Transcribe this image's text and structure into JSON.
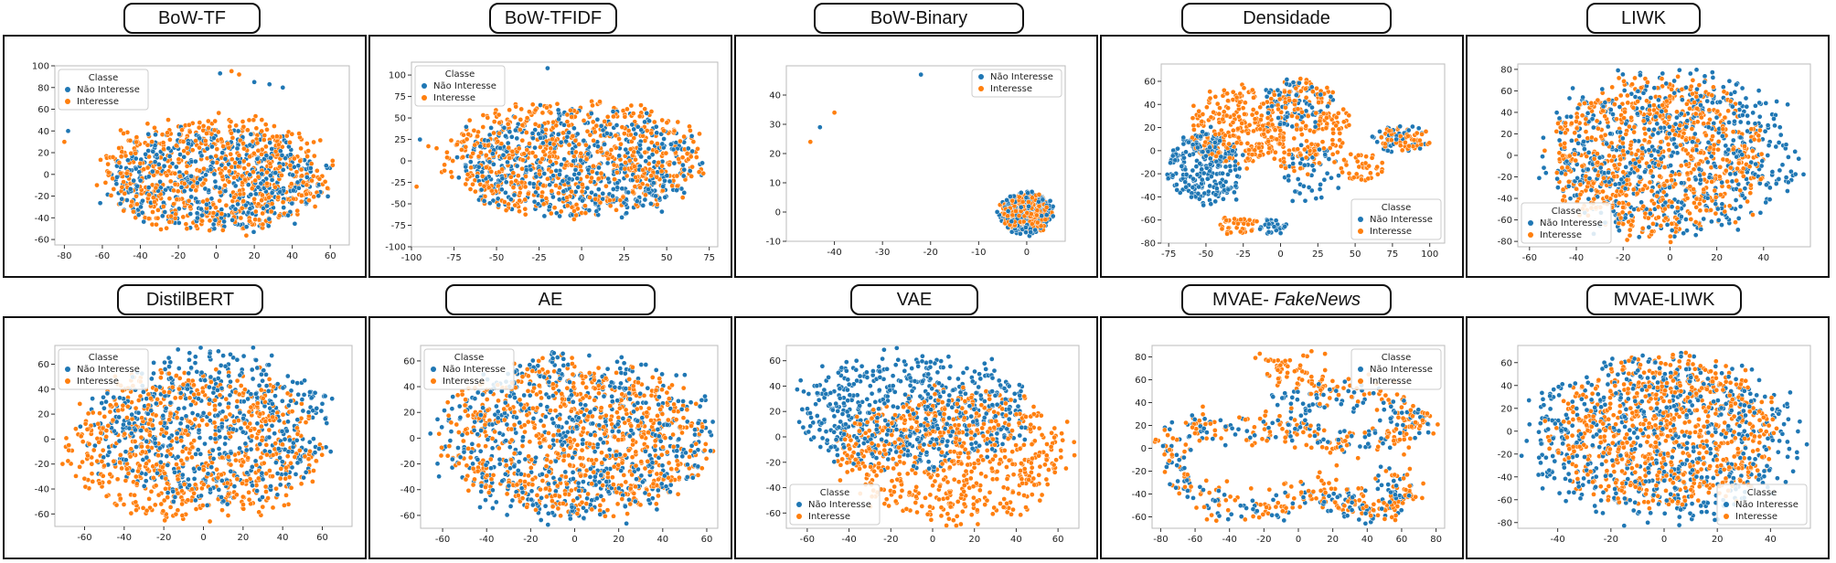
{
  "colors": {
    "nao_interesse": "#1f77b4",
    "interesse": "#ff7f0e",
    "point_edge": "#ffffff",
    "axes_frame": "#bbbbbb"
  },
  "panels": [
    {
      "title": "BoW-TF",
      "title_parts": [
        {
          "text": "BoW-TF",
          "italic": false
        }
      ]
    },
    {
      "title": "BoW-TFIDF",
      "title_parts": [
        {
          "text": "BoW-TFIDF",
          "italic": false
        }
      ]
    },
    {
      "title": "BoW-Binary",
      "title_parts": [
        {
          "text": "BoW-Binary",
          "italic": false
        }
      ]
    },
    {
      "title": "Densidade",
      "title_parts": [
        {
          "text": "Densidade",
          "italic": false
        }
      ]
    },
    {
      "title": "LIWK",
      "title_parts": [
        {
          "text": "LIWK",
          "italic": false
        }
      ]
    },
    {
      "title": "DistilBERT",
      "title_parts": [
        {
          "text": "DistilBERT",
          "italic": false
        }
      ]
    },
    {
      "title": "AE",
      "title_parts": [
        {
          "text": "AE",
          "italic": false
        }
      ]
    },
    {
      "title": "VAE",
      "title_parts": [
        {
          "text": "VAE",
          "italic": false
        }
      ]
    },
    {
      "title": "MVAE- FakeNews",
      "title_parts": [
        {
          "text": "MVAE- ",
          "italic": false
        },
        {
          "text": "FakeNews",
          "italic": true
        }
      ]
    },
    {
      "title": "MVAE-LIWK",
      "title_parts": [
        {
          "text": "MVAE-LIWK",
          "italic": false
        }
      ]
    }
  ],
  "chart_data": [
    {
      "type": "scatter",
      "title": "BoW-TF",
      "xlim": [
        -85,
        70
      ],
      "ylim": [
        -65,
        100
      ],
      "xticks": [
        -80,
        -60,
        -40,
        -20,
        0,
        20,
        40,
        60
      ],
      "yticks": [
        -60,
        -40,
        -20,
        0,
        20,
        40,
        60,
        80,
        100
      ],
      "legend": {
        "title": "Classe",
        "labels": [
          "Não Interesse",
          "Interesse"
        ],
        "position": "upper-left"
      },
      "series": [
        {
          "name": "Não Interesse",
          "clusters": [
            {
              "cx": 0,
              "cy": -5,
              "rx": 55,
              "ry": 45,
              "n": 500
            }
          ],
          "points": [
            [
              -78,
              40
            ],
            [
              2,
              93
            ],
            [
              20,
              85
            ],
            [
              28,
              83
            ],
            [
              35,
              80
            ]
          ]
        },
        {
          "name": "Interesse",
          "clusters": [
            {
              "cx": -2,
              "cy": 0,
              "rx": 58,
              "ry": 52,
              "n": 650
            }
          ],
          "points": [
            [
              -80,
              30
            ],
            [
              8,
              95
            ],
            [
              12,
              92
            ]
          ]
        }
      ]
    },
    {
      "type": "scatter",
      "title": "BoW-TFIDF",
      "xlim": [
        -100,
        80
      ],
      "ylim": [
        -100,
        115
      ],
      "xticks": [
        -100,
        -75,
        -50,
        -25,
        0,
        25,
        50,
        75
      ],
      "yticks": [
        -100,
        -75,
        -50,
        -25,
        0,
        25,
        50,
        75,
        100
      ],
      "legend": {
        "title": "Classe",
        "labels": [
          "Não Interesse",
          "Interesse"
        ],
        "position": "upper-left"
      },
      "series": [
        {
          "name": "Não Interesse",
          "clusters": [
            {
              "cx": 0,
              "cy": -5,
              "rx": 70,
              "ry": 60,
              "n": 550
            }
          ],
          "points": [
            [
              -20,
              108
            ],
            [
              -95,
              25
            ]
          ]
        },
        {
          "name": "Interesse",
          "clusters": [
            {
              "cx": -5,
              "cy": 5,
              "rx": 75,
              "ry": 65,
              "n": 650
            }
          ],
          "points": [
            [
              -97,
              -30
            ]
          ]
        }
      ]
    },
    {
      "type": "scatter",
      "title": "BoW-Binary",
      "xlim": [
        -50,
        8
      ],
      "ylim": [
        -10,
        50
      ],
      "xticks": [
        -40,
        -30,
        -20,
        -10,
        0
      ],
      "yticks": [
        -10,
        0,
        10,
        20,
        30,
        40
      ],
      "legend": {
        "title": "",
        "labels": [
          "Não Interesse",
          "Interesse"
        ],
        "position": "upper-right"
      },
      "series": [
        {
          "name": "Não Interesse",
          "clusters": [
            {
              "cx": 0,
              "cy": 0,
              "rx": 5.5,
              "ry": 7,
              "n": 260
            }
          ],
          "points": [
            [
              -22,
              47
            ],
            [
              -43,
              29
            ]
          ]
        },
        {
          "name": "Interesse",
          "clusters": [
            {
              "cx": 0,
              "cy": 0,
              "rx": 5,
              "ry": 6.5,
              "n": 320
            }
          ],
          "points": [
            [
              -45,
              24
            ],
            [
              -40,
              34
            ]
          ]
        }
      ]
    },
    {
      "type": "scatter",
      "title": "Densidade",
      "xlim": [
        -80,
        110
      ],
      "ylim": [
        -80,
        75
      ],
      "xticks": [
        -75,
        -50,
        -25,
        0,
        25,
        50,
        75,
        100
      ],
      "yticks": [
        -80,
        -60,
        -40,
        -20,
        0,
        20,
        40,
        60
      ],
      "legend": {
        "title": "Classe",
        "labels": [
          "Não Interesse",
          "Interesse"
        ],
        "position": "lower-right"
      },
      "series": [
        {
          "name": "Não Interesse",
          "clusters": [
            {
              "cx": -50,
              "cy": -15,
              "rx": 25,
              "ry": 30,
              "n": 260
            },
            {
              "cx": 10,
              "cy": 40,
              "rx": 25,
              "ry": 20,
              "n": 80
            },
            {
              "cx": -5,
              "cy": -65,
              "rx": 10,
              "ry": 8,
              "n": 30
            },
            {
              "cx": 80,
              "cy": 10,
              "rx": 20,
              "ry": 12,
              "n": 40
            },
            {
              "cx": 20,
              "cy": -20,
              "rx": 20,
              "ry": 25,
              "n": 50
            }
          ]
        },
        {
          "name": "Interesse",
          "clusters": [
            {
              "cx": -30,
              "cy": 20,
              "rx": 30,
              "ry": 35,
              "n": 220
            },
            {
              "cx": 15,
              "cy": 20,
              "rx": 30,
              "ry": 40,
              "n": 220
            },
            {
              "cx": 85,
              "cy": 10,
              "rx": 18,
              "ry": 10,
              "n": 50
            },
            {
              "cx": 55,
              "cy": -15,
              "rx": 15,
              "ry": 12,
              "n": 40
            },
            {
              "cx": -30,
              "cy": -65,
              "rx": 15,
              "ry": 8,
              "n": 40
            }
          ]
        }
      ]
    },
    {
      "type": "scatter",
      "title": "LIWK",
      "xlim": [
        -65,
        60
      ],
      "ylim": [
        -85,
        85
      ],
      "xticks": [
        -60,
        -40,
        -20,
        0,
        20,
        40
      ],
      "yticks": [
        -80,
        -60,
        -40,
        -20,
        0,
        20,
        40,
        60,
        80
      ],
      "legend": {
        "title": "Classe",
        "labels": [
          "Não Interesse",
          "Interesse"
        ],
        "position": "lower-left"
      },
      "series": [
        {
          "name": "Não Interesse",
          "clusters": [
            {
              "cx": 0,
              "cy": 0,
              "rx": 52,
              "ry": 75,
              "n": 650
            }
          ]
        },
        {
          "name": "Interesse",
          "clusters": [
            {
              "cx": -5,
              "cy": 0,
              "rx": 45,
              "ry": 72,
              "n": 750
            }
          ]
        }
      ]
    },
    {
      "type": "scatter",
      "title": "DistilBERT",
      "xlim": [
        -75,
        75
      ],
      "ylim": [
        -70,
        75
      ],
      "xticks": [
        -60,
        -40,
        -20,
        0,
        20,
        40,
        60
      ],
      "yticks": [
        -60,
        -40,
        -20,
        0,
        20,
        40,
        60
      ],
      "legend": {
        "title": "Classe",
        "labels": [
          "Não Interesse",
          "Interesse"
        ],
        "position": "upper-left"
      },
      "series": [
        {
          "name": "Não Interesse",
          "clusters": [
            {
              "cx": 5,
              "cy": 10,
              "rx": 60,
              "ry": 60,
              "n": 600
            }
          ]
        },
        {
          "name": "Interesse",
          "clusters": [
            {
              "cx": -5,
              "cy": -5,
              "rx": 62,
              "ry": 60,
              "n": 700
            }
          ]
        }
      ]
    },
    {
      "type": "scatter",
      "title": "AE",
      "xlim": [
        -70,
        65
      ],
      "ylim": [
        -70,
        72
      ],
      "xticks": [
        -60,
        -40,
        -20,
        0,
        20,
        40,
        60
      ],
      "yticks": [
        -60,
        -40,
        -20,
        0,
        20,
        40,
        60
      ],
      "legend": {
        "title": "Classe",
        "labels": [
          "Não Interesse",
          "Interesse"
        ],
        "position": "upper-left"
      },
      "series": [
        {
          "name": "Não Interesse",
          "clusters": [
            {
              "cx": 0,
              "cy": 0,
              "rx": 62,
              "ry": 62,
              "n": 650
            }
          ]
        },
        {
          "name": "Interesse",
          "clusters": [
            {
              "cx": 0,
              "cy": 0,
              "rx": 58,
              "ry": 60,
              "n": 750
            }
          ]
        }
      ]
    },
    {
      "type": "scatter",
      "title": "VAE",
      "xlim": [
        -70,
        70
      ],
      "ylim": [
        -72,
        72
      ],
      "xticks": [
        -60,
        -40,
        -20,
        0,
        20,
        40,
        60
      ],
      "yticks": [
        -60,
        -40,
        -20,
        0,
        20,
        40,
        60
      ],
      "legend": {
        "title": "Classe",
        "labels": [
          "Não Interesse",
          "Interesse"
        ],
        "position": "lower-left"
      },
      "series": [
        {
          "name": "Não Interesse",
          "clusters": [
            {
              "cx": -10,
              "cy": 20,
              "rx": 55,
              "ry": 45,
              "n": 600
            }
          ]
        },
        {
          "name": "Interesse",
          "clusters": [
            {
              "cx": 10,
              "cy": -15,
              "rx": 55,
              "ry": 50,
              "n": 650
            }
          ]
        }
      ]
    },
    {
      "type": "scatter",
      "title": "MVAE- FakeNews",
      "xlim": [
        -85,
        85
      ],
      "ylim": [
        -70,
        90
      ],
      "xticks": [
        -80,
        -60,
        -40,
        -20,
        0,
        20,
        40,
        60,
        80
      ],
      "yticks": [
        -60,
        -40,
        -20,
        0,
        20,
        40,
        60,
        80
      ],
      "legend": {
        "title": "Classe",
        "labels": [
          "Não Interesse",
          "Interesse"
        ],
        "position": "upper-right"
      },
      "series": [
        {
          "name": "Não Interesse",
          "path": [
            [
              -10,
              55
            ],
            [
              0,
              35
            ],
            [
              20,
              45
            ],
            [
              50,
              35
            ],
            [
              70,
              25
            ],
            [
              55,
              10
            ],
            [
              30,
              5
            ],
            [
              10,
              10
            ],
            [
              -5,
              20
            ],
            [
              -30,
              15
            ],
            [
              -60,
              20
            ],
            [
              -75,
              0
            ],
            [
              -65,
              -30
            ],
            [
              -45,
              -50
            ],
            [
              -20,
              -55
            ],
            [
              10,
              -40
            ],
            [
              30,
              -45
            ],
            [
              40,
              -60
            ],
            [
              60,
              -45
            ],
            [
              50,
              -25
            ]
          ],
          "n": 300,
          "spread": 6
        },
        {
          "name": "Interesse",
          "path": [
            [
              20,
              82
            ],
            [
              -15,
              75
            ],
            [
              -5,
              60
            ],
            [
              20,
              52
            ],
            [
              55,
              38
            ],
            [
              75,
              25
            ],
            [
              55,
              8
            ],
            [
              25,
              3
            ],
            [
              5,
              10
            ],
            [
              -10,
              22
            ],
            [
              -30,
              14
            ],
            [
              -60,
              22
            ],
            [
              -78,
              0
            ],
            [
              -68,
              -30
            ],
            [
              -45,
              -52
            ],
            [
              -15,
              -55
            ],
            [
              10,
              -38
            ],
            [
              30,
              -47
            ],
            [
              42,
              -60
            ],
            [
              62,
              -45
            ],
            [
              55,
              -25
            ]
          ],
          "n": 450,
          "spread": 7
        }
      ]
    },
    {
      "type": "scatter",
      "title": "MVAE-LIWK",
      "xlim": [
        -55,
        55
      ],
      "ylim": [
        -85,
        75
      ],
      "xticks": [
        -40,
        -20,
        0,
        20,
        40
      ],
      "yticks": [
        -80,
        -60,
        -40,
        -20,
        0,
        20,
        40,
        60
      ],
      "legend": {
        "title": "Classe",
        "labels": [
          "Não Interesse",
          "Interesse"
        ],
        "position": "lower-right"
      },
      "series": [
        {
          "name": "Não Interesse",
          "clusters": [
            {
              "cx": 0,
              "cy": -5,
              "rx": 50,
              "ry": 72,
              "n": 650
            }
          ]
        },
        {
          "name": "Interesse",
          "clusters": [
            {
              "cx": 0,
              "cy": 0,
              "rx": 42,
              "ry": 65,
              "n": 750
            }
          ]
        }
      ]
    }
  ]
}
